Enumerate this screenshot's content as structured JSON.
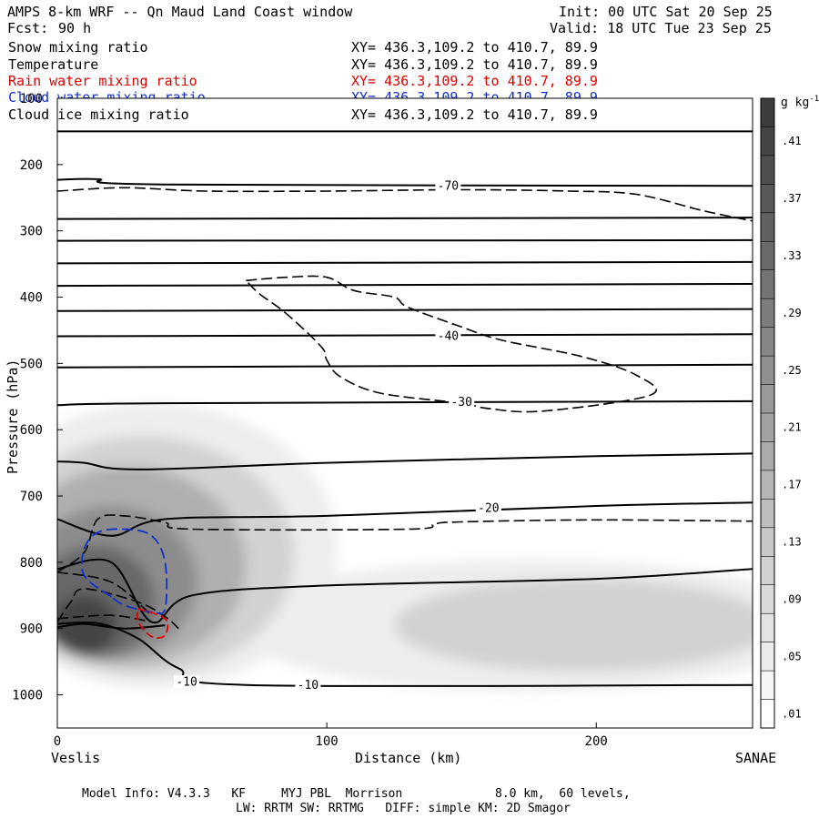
{
  "header": {
    "title": "AMPS 8-km WRF -- Qn Maud Land Coast window",
    "init": "Init: 00 UTC Sat 20 Sep 25",
    "fcst_label": "Fcst:",
    "fcst_value": "90 h",
    "valid": "Valid: 18 UTC Tue 23 Sep 25"
  },
  "fields": [
    {
      "name": "Snow mixing ratio",
      "xy": "XY= 436.3,109.2 to 410.7, 89.9",
      "color": "#000000"
    },
    {
      "name": "Temperature",
      "xy": "XY= 436.3,109.2 to 410.7, 89.9",
      "color": "#000000"
    },
    {
      "name": "Rain water mixing ratio",
      "xy": "XY= 436.3,109.2 to 410.7, 89.9",
      "color": "#e00000"
    },
    {
      "name": "Cloud water mixing ratio",
      "xy": "XY= 436.3,109.2 to 410.7, 89.9",
      "color": "#1030d0"
    },
    {
      "name": "Cloud ice mixing ratio",
      "xy": "XY= 436.3,109.2 to 410.7, 89.9",
      "color": "#000000"
    }
  ],
  "footer": {
    "model_info": "Model Info: V4.3.3   KF     MYJ PBL  Morrison             8.0 km,  60 levels,",
    "physics": "LW: RRTM SW: RRTMG   DIFF: simple KM: 2D Smagor"
  },
  "chart_data": {
    "type": "cross-section contour",
    "xlabel": "Distance (km)",
    "ylabel": "Pressure (hPa)",
    "xlim": [
      0,
      258
    ],
    "ylim": [
      1050,
      100
    ],
    "x_ticks": [
      0,
      100,
      200
    ],
    "y_ticks": [
      100,
      200,
      300,
      400,
      500,
      600,
      700,
      800,
      900,
      1000
    ],
    "left_endpoint": "Veslis",
    "right_endpoint": "SANAE",
    "colorbar": {
      "unit": "g kg",
      "unit_exp": "-1",
      "labels": [
        ".41",
        ".37",
        ".33",
        ".29",
        ".25",
        ".21",
        ".17",
        ".13",
        ".09",
        ".05",
        ".01"
      ],
      "top_color": "#3c3c3c",
      "bottom_color": "#ffffff"
    },
    "snow_blobs": [
      {
        "cx": 10,
        "cy": 895,
        "rx": 12,
        "ry": 45,
        "level": 0.41
      },
      {
        "cx": 14,
        "cy": 860,
        "rx": 22,
        "ry": 85,
        "level": 0.33
      },
      {
        "cx": 20,
        "cy": 830,
        "rx": 32,
        "ry": 115,
        "level": 0.25
      },
      {
        "cx": 26,
        "cy": 805,
        "rx": 44,
        "ry": 150,
        "level": 0.17
      },
      {
        "cx": 32,
        "cy": 790,
        "rx": 56,
        "ry": 180,
        "level": 0.09
      },
      {
        "cx": 36,
        "cy": 775,
        "rx": 68,
        "ry": 215,
        "level": 0.03
      },
      {
        "cx": 195,
        "cy": 895,
        "rx": 70,
        "ry": 70,
        "level": 0.09
      },
      {
        "cx": 175,
        "cy": 895,
        "rx": 110,
        "ry": 100,
        "level": 0.03
      }
    ],
    "temperature_contours": [
      {
        "points": [
          [
            0,
            150
          ],
          [
            258,
            150
          ]
        ]
      },
      {
        "points": [
          [
            0,
            223
          ],
          [
            15,
            222
          ],
          [
            40,
            230
          ],
          [
            258,
            232
          ]
        ]
      },
      {
        "points": [
          [
            0,
            282
          ],
          [
            258,
            280
          ]
        ]
      },
      {
        "points": [
          [
            0,
            315
          ],
          [
            258,
            314
          ]
        ]
      },
      {
        "points": [
          [
            0,
            349
          ],
          [
            258,
            347
          ]
        ]
      },
      {
        "points": [
          [
            0,
            383
          ],
          [
            258,
            380
          ]
        ]
      },
      {
        "points": [
          [
            0,
            421
          ],
          [
            258,
            418
          ]
        ]
      },
      {
        "points": [
          [
            0,
            459
          ],
          [
            258,
            456
          ]
        ]
      },
      {
        "points": [
          [
            0,
            506
          ],
          [
            258,
            502
          ]
        ]
      },
      {
        "points": [
          [
            0,
            563
          ],
          [
            40,
            560
          ],
          [
            258,
            557
          ]
        ]
      },
      {
        "points": [
          [
            0,
            648
          ],
          [
            10,
            650
          ],
          [
            30,
            660
          ],
          [
            100,
            650
          ],
          [
            200,
            640
          ],
          [
            258,
            636
          ]
        ]
      },
      {
        "points": [
          [
            0,
            735
          ],
          [
            20,
            760
          ],
          [
            40,
            735
          ],
          [
            100,
            730
          ],
          [
            200,
            715
          ],
          [
            258,
            710
          ]
        ]
      },
      {
        "points": [
          [
            0,
            810
          ],
          [
            20,
            800
          ],
          [
            35,
            890
          ],
          [
            50,
            850
          ],
          [
            100,
            835
          ],
          [
            200,
            825
          ],
          [
            258,
            810
          ]
        ]
      },
      {
        "points": [
          [
            0,
            898
          ],
          [
            10,
            893
          ],
          [
            25,
            900
          ],
          [
            40,
            895
          ]
        ]
      },
      {
        "points": [
          [
            0,
            893
          ],
          [
            15,
            892
          ],
          [
            30,
            915
          ],
          [
            45,
            960
          ],
          [
            70,
            985
          ],
          [
            258,
            985
          ]
        ]
      }
    ],
    "temperature_labels": [
      {
        "text": "-70",
        "x": 145,
        "p": 232
      },
      {
        "text": "-40",
        "x": 145,
        "p": 458
      },
      {
        "text": "-30",
        "x": 150,
        "p": 558
      },
      {
        "text": "-20",
        "x": 160,
        "p": 718
      },
      {
        "text": "-10",
        "x": 48,
        "p": 980
      },
      {
        "text": "-10",
        "x": 93,
        "p": 985
      }
    ],
    "cloud_ice_contours": [
      {
        "points": [
          [
            0,
            240
          ],
          [
            25,
            235
          ],
          [
            55,
            240
          ],
          [
            100,
            240
          ],
          [
            150,
            238
          ],
          [
            190,
            240
          ],
          [
            215,
            245
          ],
          [
            240,
            270
          ],
          [
            258,
            285
          ]
        ]
      },
      {
        "points": [
          [
            70,
            375
          ],
          [
            85,
            370
          ],
          [
            100,
            370
          ],
          [
            110,
            390
          ],
          [
            125,
            400
          ],
          [
            130,
            415
          ],
          [
            150,
            445
          ],
          [
            165,
            465
          ],
          [
            195,
            490
          ],
          [
            215,
            518
          ],
          [
            220,
            548
          ],
          [
            180,
            572
          ],
          [
            160,
            568
          ],
          [
            150,
            560
          ],
          [
            120,
            545
          ],
          [
            105,
            520
          ],
          [
            100,
            495
          ],
          [
            98,
            475
          ],
          [
            85,
            425
          ],
          [
            75,
            395
          ],
          [
            70,
            375
          ]
        ]
      },
      {
        "points": [
          [
            0,
            815
          ],
          [
            10,
            785
          ],
          [
            15,
            735
          ],
          [
            25,
            730
          ],
          [
            40,
            740
          ],
          [
            50,
            750
          ],
          [
            130,
            750
          ],
          [
            140,
            742
          ],
          [
            150,
            739
          ],
          [
            200,
            736
          ],
          [
            258,
            738
          ]
        ]
      },
      {
        "points": [
          [
            0,
            890
          ],
          [
            5,
            860
          ],
          [
            10,
            840
          ],
          [
            30,
            860
          ],
          [
            40,
            882
          ],
          [
            45,
            900
          ]
        ]
      },
      {
        "points": [
          [
            0,
            885
          ],
          [
            20,
            880
          ],
          [
            35,
            890
          ]
        ]
      },
      {
        "points": [
          [
            0,
            815
          ],
          [
            20,
            830
          ],
          [
            35,
            880
          ]
        ]
      }
    ],
    "cloud_water_contours": [
      {
        "points": [
          [
            20,
            852
          ],
          [
            10,
            820
          ],
          [
            10,
            780
          ],
          [
            15,
            755
          ],
          [
            25,
            750
          ],
          [
            35,
            760
          ],
          [
            40,
            800
          ],
          [
            40,
            870
          ],
          [
            35,
            875
          ],
          [
            25,
            865
          ],
          [
            20,
            852
          ]
        ]
      }
    ],
    "rain_water_contours": [
      {
        "points": [
          [
            30,
            870
          ],
          [
            40,
            885
          ],
          [
            40,
            910
          ],
          [
            35,
            912
          ],
          [
            30,
            890
          ],
          [
            30,
            870
          ]
        ]
      }
    ]
  }
}
